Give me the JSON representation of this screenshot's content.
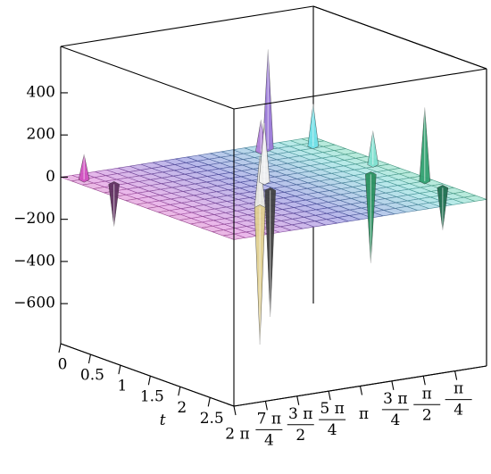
{
  "chart_data": {
    "type": "surface3d",
    "zlim": [
      -790,
      620
    ],
    "zticks": [
      400,
      200,
      0,
      -200,
      -400,
      -600
    ],
    "zticklabels": [
      {
        "value": -600,
        "label": "−600"
      },
      {
        "value": -400,
        "label": "−400"
      },
      {
        "value": -200,
        "label": "−200"
      }
    ],
    "tlim": [
      0,
      2.9
    ],
    "tticks": [
      0,
      0.5,
      1,
      1.5,
      2,
      2.5
    ],
    "tlabel": "t",
    "xlim": [
      0,
      6.2832
    ],
    "xticks": [
      {
        "value": 6.2832,
        "label": "2 π"
      },
      {
        "value": 5.4978,
        "label": "7 π/4"
      },
      {
        "value": 4.7124,
        "label": "3 π/2"
      },
      {
        "value": 3.927,
        "label": "5 π/4"
      },
      {
        "value": 3.1416,
        "label": "π"
      },
      {
        "value": 2.3562,
        "label": "3 π/4"
      },
      {
        "value": 1.5708,
        "label": "π/2"
      },
      {
        "value": 0.7854,
        "label": "π/4"
      }
    ],
    "peaks": {
      "x": [
        1.35,
        1.6,
        6.0,
        5.7,
        4.3,
        4.3,
        3.0,
        3.3,
        0.45,
        0.8,
        0.3,
        0.2,
        0.2
      ],
      "t": [
        0.15,
        0.2,
        0.2,
        0.5,
        2.0,
        2.0,
        1.2,
        1.5,
        0.3,
        1.5,
        1.2,
        2.0,
        2.3
      ],
      "z": [
        470,
        150,
        120,
        -200,
        250,
        -650,
        280,
        -600,
        200,
        -420,
        160,
        350,
        -200
      ],
      "colors": [
        "#9a78d8",
        "#b080d8",
        "#d050c0",
        "#603060",
        "#e8e8e0",
        "#e0d090",
        "#f0f0f0",
        "#404040",
        "#70e0e8",
        "#2a9060",
        "#80e0d0",
        "#30a070",
        "#207050"
      ]
    }
  }
}
